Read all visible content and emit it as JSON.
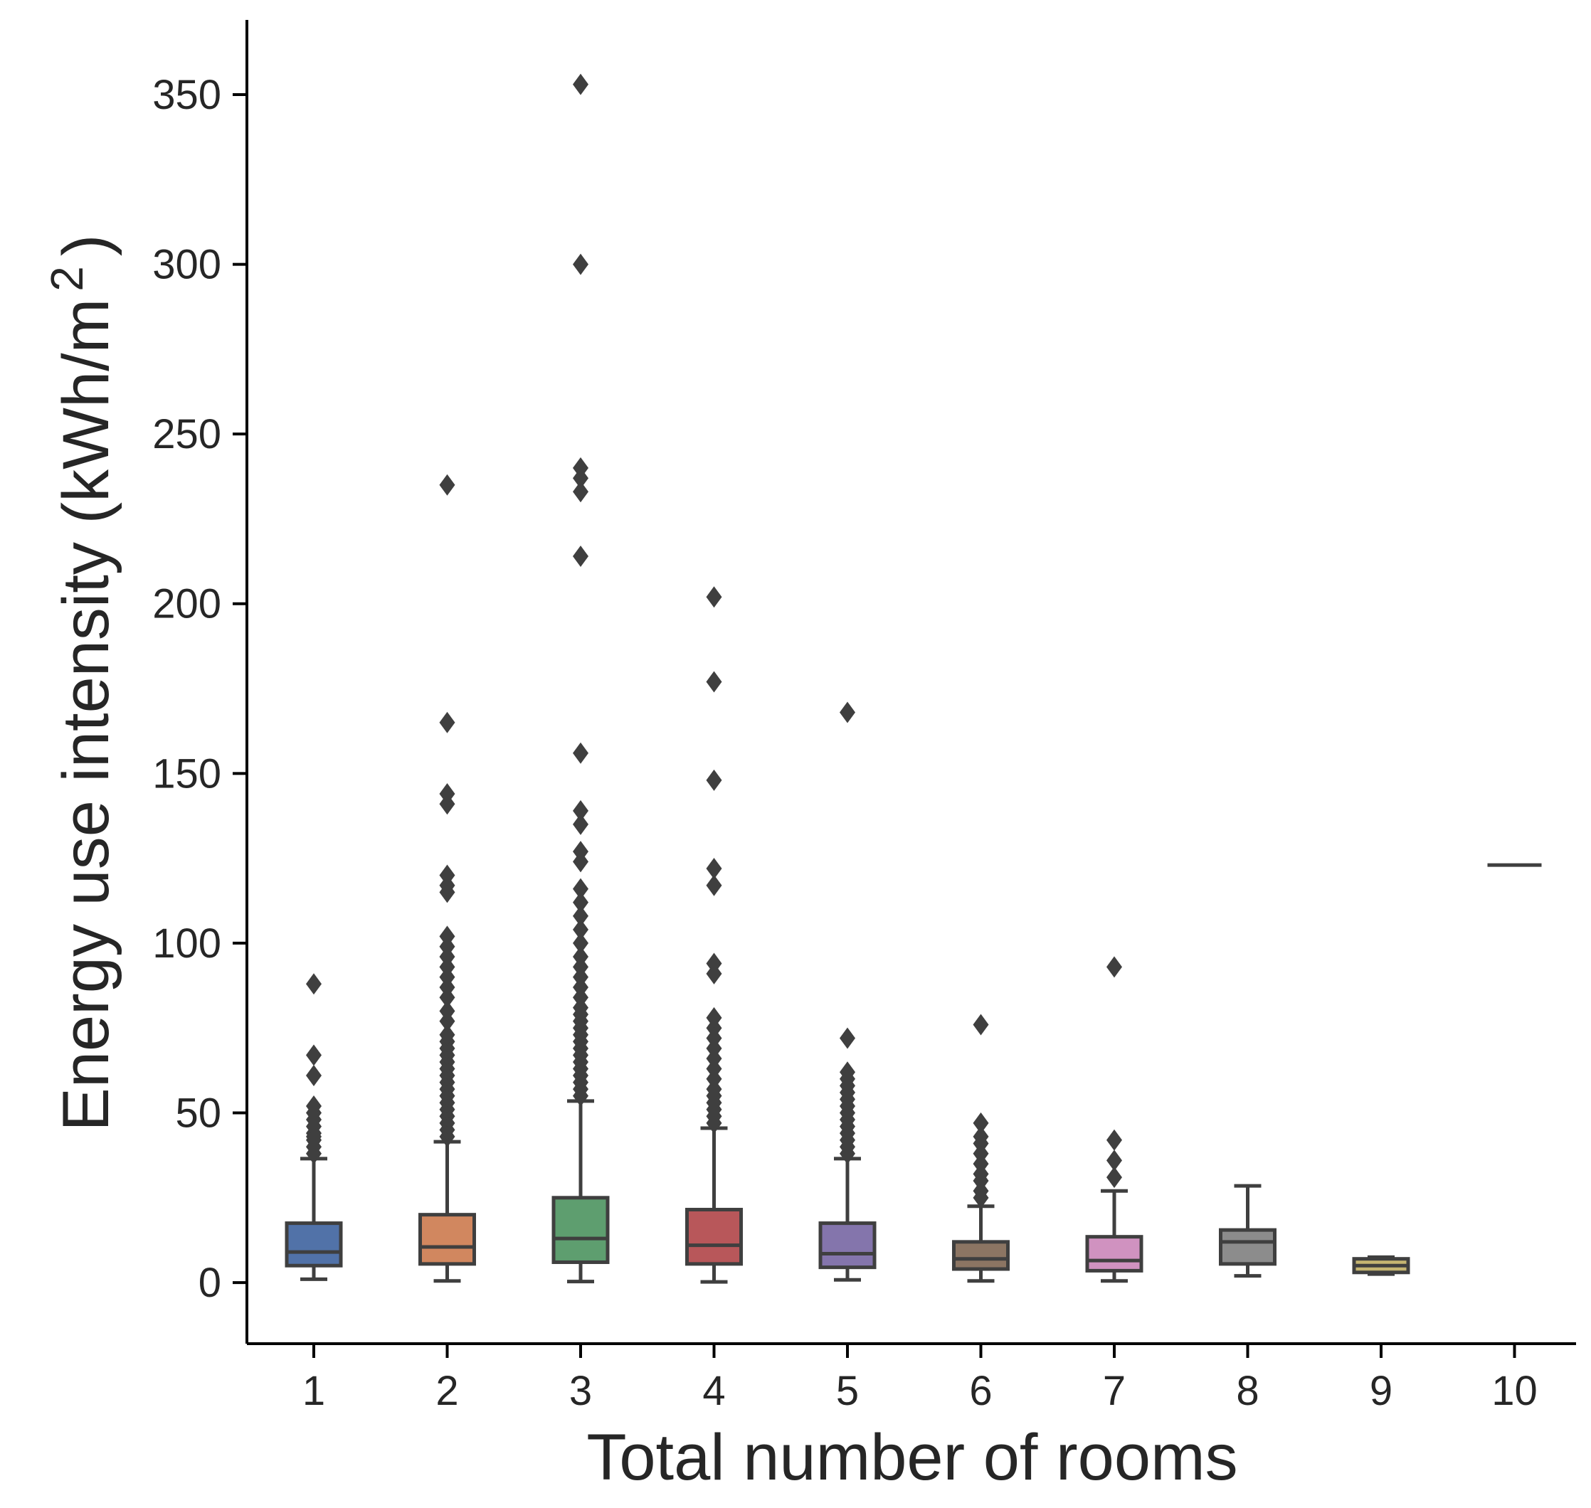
{
  "chart_data": {
    "type": "box",
    "xlabel": "Total number of rooms",
    "ylabel": "Energy use intensity (kWh/m",
    "ylabel_sup": "2",
    "ylabel_close": ")",
    "ylim": [
      -18,
      372
    ],
    "yticks": [
      0,
      50,
      100,
      150,
      200,
      250,
      300,
      350
    ],
    "grid": false,
    "categories": [
      "1",
      "2",
      "3",
      "4",
      "5",
      "6",
      "7",
      "8",
      "9",
      "10"
    ],
    "boxes": [
      {
        "category": "1",
        "color": "#5172a8",
        "whislo": 1,
        "q1": 5,
        "median": 9,
        "q3": 17.5,
        "whishi": 36.5,
        "fliers": [
          38,
          40,
          42,
          43,
          44,
          46,
          48,
          50,
          52,
          61,
          67,
          88
        ]
      },
      {
        "category": "2",
        "color": "#d1875f",
        "whislo": 0.5,
        "q1": 5.5,
        "median": 10.5,
        "q3": 20,
        "whishi": 41.5,
        "fliers": [
          43,
          45,
          47,
          49,
          51,
          53,
          55,
          57,
          59,
          61,
          63,
          65,
          67,
          69,
          71,
          73,
          77,
          80,
          84,
          87,
          90,
          93,
          96,
          99,
          102,
          115,
          117,
          120,
          141,
          144,
          165,
          235
        ]
      },
      {
        "category": "3",
        "color": "#5e9e6f",
        "whislo": 0.3,
        "q1": 6,
        "median": 13,
        "q3": 25,
        "whishi": 53.5,
        "fliers": [
          55,
          57,
          59,
          61,
          63,
          65,
          67,
          69,
          71,
          73,
          75,
          77,
          79,
          81,
          84,
          87,
          90,
          93,
          96,
          100,
          104,
          108,
          112,
          116,
          124,
          127,
          135,
          139,
          156,
          214,
          233,
          237,
          240,
          300,
          353
        ]
      },
      {
        "category": "4",
        "color": "#b8575a",
        "whislo": 0.2,
        "q1": 5.5,
        "median": 11,
        "q3": 21.5,
        "whishi": 45.5,
        "fliers": [
          47,
          49,
          51,
          53,
          55,
          57,
          60,
          63,
          66,
          69,
          72,
          75,
          78,
          91,
          94,
          117,
          122,
          148,
          177,
          202
        ]
      },
      {
        "category": "5",
        "color": "#8475ac",
        "whislo": 0.8,
        "q1": 4.5,
        "median": 8.5,
        "q3": 17.5,
        "whishi": 36.5,
        "fliers": [
          38,
          40,
          42,
          44,
          46,
          48,
          50,
          52,
          54,
          56,
          58,
          60,
          62,
          72,
          168
        ]
      },
      {
        "category": "6",
        "color": "#8c7563",
        "whislo": 0.5,
        "q1": 4,
        "median": 7,
        "q3": 12,
        "whishi": 22.5,
        "fliers": [
          25,
          27,
          30,
          32,
          35,
          38,
          41,
          43,
          47,
          76
        ]
      },
      {
        "category": "7",
        "color": "#d092c0",
        "whislo": 0.5,
        "q1": 3.5,
        "median": 6.5,
        "q3": 13.5,
        "whishi": 27,
        "fliers": [
          31,
          36,
          42,
          93
        ]
      },
      {
        "category": "8",
        "color": "#8c8c8c",
        "whislo": 2,
        "q1": 5.5,
        "median": 12,
        "q3": 15.5,
        "whishi": 28.5,
        "fliers": []
      },
      {
        "category": "9",
        "color": "#c5b571",
        "whislo": 2.5,
        "q1": 3,
        "median": 5,
        "q3": 7,
        "whishi": 7.5,
        "fliers": []
      },
      {
        "category": "10",
        "color": "#6fa9c9",
        "whislo": 123,
        "q1": 123,
        "median": 123,
        "q3": 123,
        "whishi": 123,
        "fliers": []
      }
    ]
  }
}
